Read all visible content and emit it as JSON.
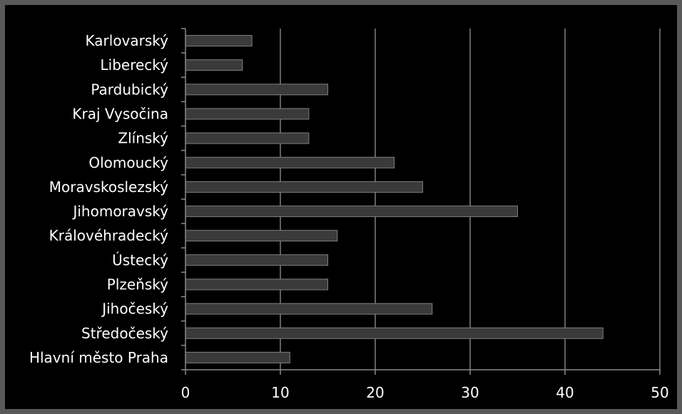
{
  "chart_data": {
    "type": "bar",
    "orientation": "horizontal",
    "categories": [
      "Karlovarský",
      "Liberecký",
      "Pardubický",
      "Kraj Vysočina",
      "Zlínský",
      "Olomoucký",
      "Moravskoslezský",
      "Jihomoravský",
      "Královéhradecký",
      "Ústecký",
      "Plzeňský",
      "Jihočeský",
      "Středočeský",
      "Hlavní město Praha"
    ],
    "values": [
      7,
      6,
      15,
      13,
      13,
      22,
      25,
      35,
      16,
      15,
      15,
      26,
      44,
      11
    ],
    "xlim": [
      0,
      50
    ],
    "xticks": [
      0,
      10,
      20,
      30,
      40,
      50
    ],
    "grid": "vertical",
    "legend": "none",
    "title": "",
    "xlabel": "",
    "ylabel": ""
  },
  "colors": {
    "background": "#000000",
    "frame": "#595959",
    "bar": "#3a3a3a",
    "bar_edge": "#7f7f7f",
    "gridline": "#7f7f7f",
    "axis": "#8c8c8c",
    "text": "#ffffff"
  }
}
